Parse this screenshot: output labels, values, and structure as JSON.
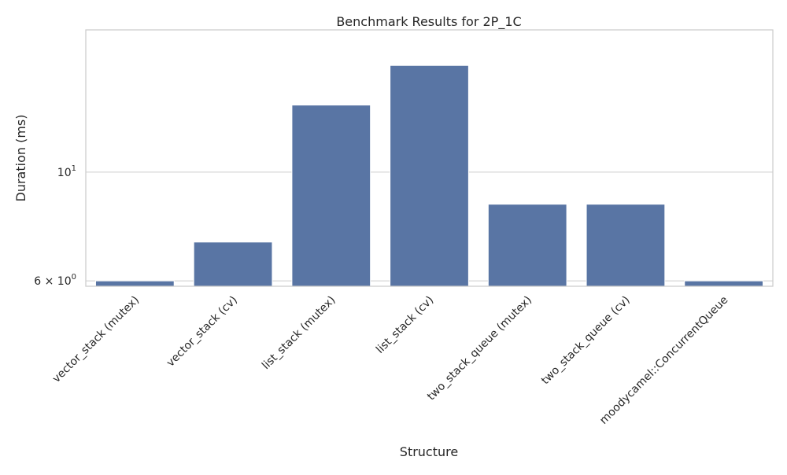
{
  "chart_data": {
    "type": "bar",
    "title": "Benchmark Results for 2P_1C",
    "xlabel": "Structure",
    "ylabel": "Duration (ms)",
    "yscale": "log",
    "ylim": [
      5.85,
      19.5
    ],
    "grid": "horizontal",
    "categories": [
      "vector_stack (mutex)",
      "vector_stack (cv)",
      "list_stack (mutex)",
      "list_stack (cv)",
      "two_stack_queue (mutex)",
      "two_stack_queue (cv)",
      "moodycamel::ConcurrentQueue"
    ],
    "values": [
      6.0,
      7.2,
      13.7,
      16.5,
      8.6,
      8.6,
      6.0
    ],
    "colors": {
      "bar": "#5975a4",
      "grid": "#cccccc",
      "frame": "#cccccc"
    },
    "y_ticks": [
      {
        "value": 10,
        "label_base": "10",
        "label_exp": "1"
      },
      {
        "value": 6,
        "label_base": "6 × 10",
        "label_exp": "0"
      }
    ]
  }
}
